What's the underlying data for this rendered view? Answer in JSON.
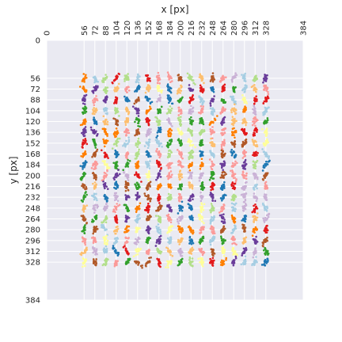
{
  "chart_data": {
    "type": "scatter",
    "title": "",
    "xlabel": "x [px]",
    "ylabel": "y [px]",
    "xlim": [
      0,
      384
    ],
    "ylim": [
      384,
      0
    ],
    "x_axis_position": "top",
    "x_tick_rotation": 90,
    "grid": true,
    "legend": "none",
    "background": "#eaeaf2",
    "grid_color": "#ffffff",
    "palette": "Paired",
    "colors": [
      "#a6cee3",
      "#1f78b4",
      "#b2df8a",
      "#33a02c",
      "#fb9a99",
      "#e31a1c",
      "#fdbf6f",
      "#ff7f00",
      "#cab2d6",
      "#6a3d9a",
      "#ffff99",
      "#b15928"
    ],
    "x_ticks": [
      "0",
      "56",
      "72",
      "88",
      "104",
      "120",
      "136",
      "152",
      "168",
      "184",
      "200",
      "216",
      "232",
      "248",
      "264",
      "280",
      "296",
      "312",
      "328",
      "384"
    ],
    "y_ticks": [
      "0",
      "56",
      "72",
      "88",
      "104",
      "120",
      "136",
      "152",
      "168",
      "184",
      "200",
      "216",
      "232",
      "248",
      "264",
      "280",
      "296",
      "312",
      "328",
      "384"
    ],
    "grid_x_centers": [
      56,
      72,
      88,
      104,
      120,
      136,
      152,
      168,
      184,
      200,
      216,
      232,
      248,
      264,
      280,
      296,
      312,
      328
    ],
    "grid_y_centers": [
      56,
      72,
      88,
      104,
      120,
      136,
      152,
      168,
      184,
      200,
      216,
      232,
      248,
      264,
      280,
      296,
      312,
      328
    ],
    "points_per_cell": 16,
    "cell_spread": [
      3,
      6
    ]
  }
}
